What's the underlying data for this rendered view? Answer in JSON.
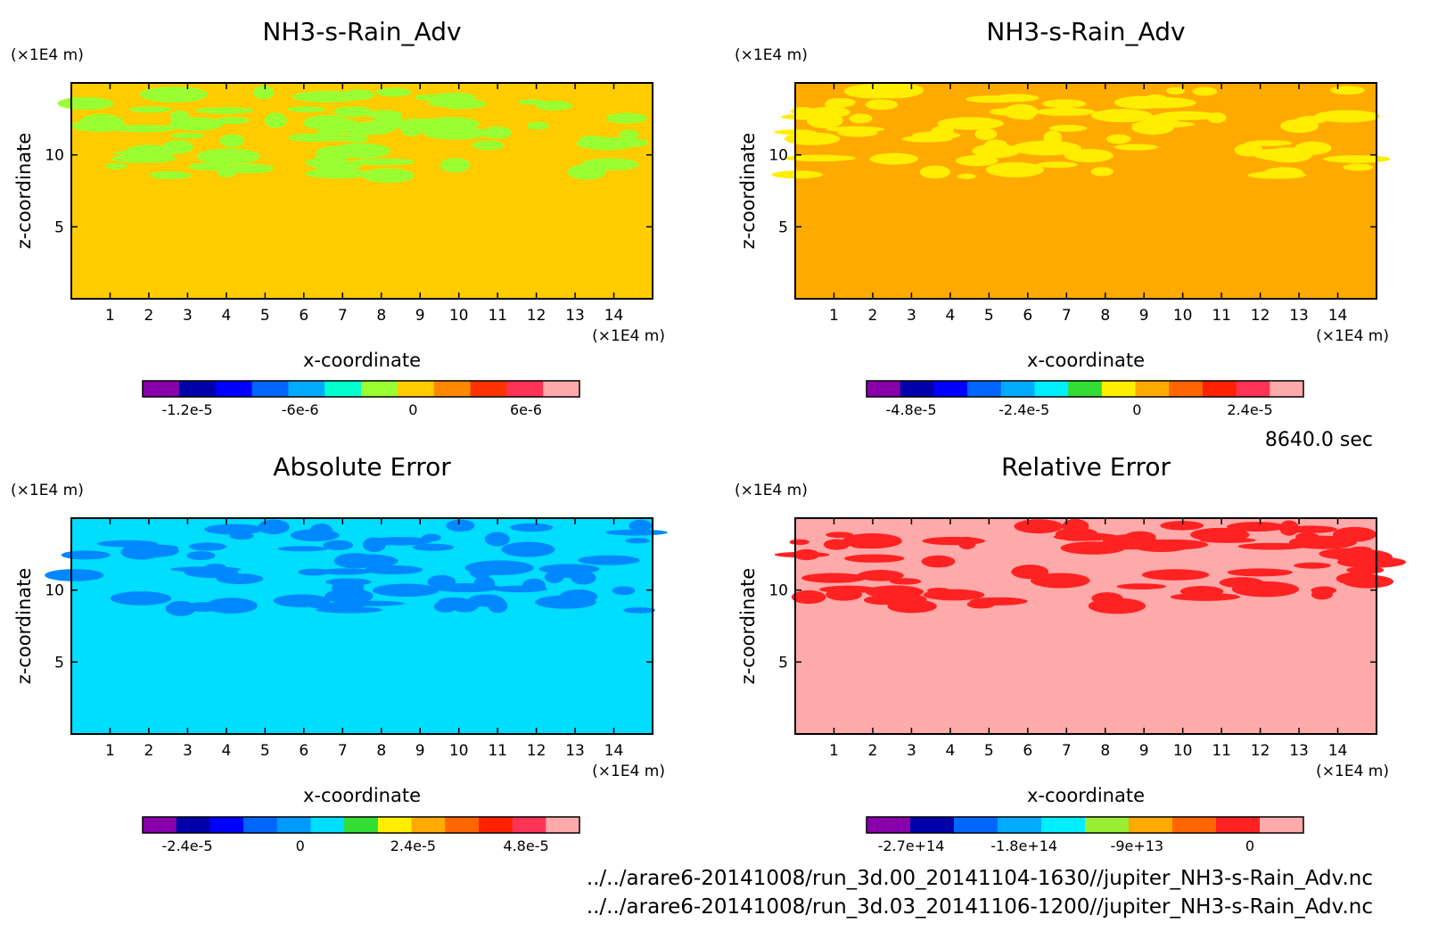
{
  "footer": {
    "time": "8640.0 sec",
    "files": [
      "../../arare6-20141008/run_3d.00_20141104-1630//jupiter_NH3-s-Rain_Adv.nc",
      "../../arare6-20141008/run_3d.03_20141106-1200//jupiter_NH3-s-Rain_Adv.nc"
    ]
  },
  "chart_data": [
    {
      "type": "heatmap",
      "title": "NH3-s-Rain_Adv",
      "xlabel": "x-coordinate",
      "ylabel": "z-coordinate",
      "x_unit": "(×1E4 m)",
      "y_unit": "(×1E4 m)",
      "xlim": [
        0,
        15
      ],
      "ylim": [
        0,
        15
      ],
      "xticks": [
        "1",
        "2",
        "3",
        "4",
        "5",
        "6",
        "7",
        "8",
        "9",
        "10",
        "11",
        "12",
        "13",
        "14"
      ],
      "yticks": [
        "5",
        "10"
      ],
      "background_color": "#ffcc00",
      "layer_color": "#99ff33",
      "layer_z_range": [
        8.5,
        14.5
      ],
      "colorbar": {
        "colors": [
          "#8800aa",
          "#0000aa",
          "#0000ff",
          "#0066ff",
          "#00aaff",
          "#00ffcc",
          "#99ff33",
          "#ffcc00",
          "#ff8800",
          "#ff3300",
          "#ff3355",
          "#ffaaaa"
        ],
        "labels": [
          "-1.2e-5",
          "-6e-6",
          "0",
          "6e-6"
        ]
      }
    },
    {
      "type": "heatmap",
      "title": "NH3-s-Rain_Adv",
      "xlabel": "x-coordinate",
      "ylabel": "z-coordinate",
      "x_unit": "(×1E4 m)",
      "y_unit": "(×1E4 m)",
      "xlim": [
        0,
        15
      ],
      "ylim": [
        0,
        15
      ],
      "xticks": [
        "1",
        "2",
        "3",
        "4",
        "5",
        "6",
        "7",
        "8",
        "9",
        "10",
        "11",
        "12",
        "13",
        "14"
      ],
      "yticks": [
        "5",
        "10"
      ],
      "background_color": "#ffaa00",
      "layer_color": "#ffee00",
      "layer_z_range": [
        8.5,
        14.5
      ],
      "colorbar": {
        "colors": [
          "#8800aa",
          "#0000aa",
          "#0000ff",
          "#0066ff",
          "#00aaff",
          "#00eeff",
          "#33dd33",
          "#ffee00",
          "#ffaa00",
          "#ff6600",
          "#ff2200",
          "#ff3355",
          "#ffaaaa"
        ],
        "labels": [
          "-4.8e-5",
          "-2.4e-5",
          "0",
          "2.4e-5"
        ]
      }
    },
    {
      "type": "heatmap",
      "title": "Absolute Error",
      "xlabel": "x-coordinate",
      "ylabel": "z-coordinate",
      "x_unit": "(×1E4 m)",
      "y_unit": "(×1E4 m)",
      "xlim": [
        0,
        15
      ],
      "ylim": [
        0,
        15
      ],
      "xticks": [
        "1",
        "2",
        "3",
        "4",
        "5",
        "6",
        "7",
        "8",
        "9",
        "10",
        "11",
        "12",
        "13",
        "14"
      ],
      "yticks": [
        "5",
        "10"
      ],
      "background_color": "#00ddff",
      "layer_color": "#0088ff",
      "layer_z_range": [
        8.5,
        14.5
      ],
      "colorbar": {
        "colors": [
          "#8800aa",
          "#0000aa",
          "#0000ff",
          "#0066ff",
          "#0099ff",
          "#00ddff",
          "#33dd33",
          "#ffee00",
          "#ffaa00",
          "#ff6600",
          "#ff2200",
          "#ff3355",
          "#ffaaaa"
        ],
        "labels": [
          "-2.4e-5",
          "0",
          "2.4e-5",
          "4.8e-5"
        ]
      }
    },
    {
      "type": "heatmap",
      "title": "Relative Error",
      "xlabel": "x-coordinate",
      "ylabel": "z-coordinate",
      "x_unit": "(×1E4 m)",
      "y_unit": "(×1E4 m)",
      "xlim": [
        0,
        15
      ],
      "ylim": [
        0,
        15
      ],
      "xticks": [
        "1",
        "2",
        "3",
        "4",
        "5",
        "6",
        "7",
        "8",
        "9",
        "10",
        "11",
        "12",
        "13",
        "14"
      ],
      "yticks": [
        "5",
        "10"
      ],
      "background_color": "#ffaaaa",
      "layer_color": "#ff2222",
      "layer_z_range": [
        8.5,
        14.5
      ],
      "colorbar": {
        "colors": [
          "#8800aa",
          "#0000aa",
          "#0066ff",
          "#00aaff",
          "#00eeff",
          "#99ee33",
          "#ffaa00",
          "#ff6600",
          "#ff2222",
          "#ffaaaa"
        ],
        "labels": [
          "-2.7e+14",
          "-1.8e+14",
          "-9e+13",
          "0"
        ]
      }
    }
  ]
}
